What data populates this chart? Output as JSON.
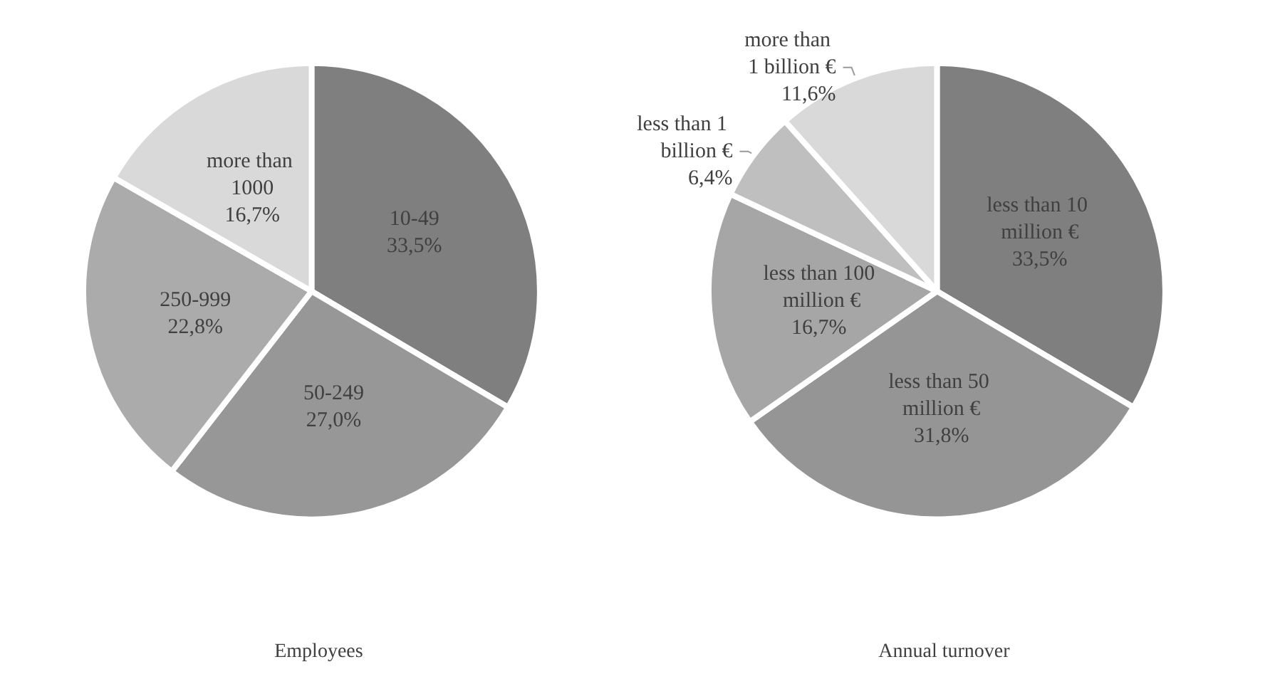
{
  "chart_data": [
    {
      "type": "pie",
      "title": "Employees",
      "categories": [
        "10-49",
        "50-249",
        "250-999",
        "more than 1000"
      ],
      "values": [
        33.5,
        27.0,
        22.8,
        16.7
      ],
      "value_labels": [
        "33,5%",
        "27,0%",
        "22,8%",
        "16,7%"
      ],
      "colors": [
        "#7f7f7f",
        "#979797",
        "#ababab",
        "#d9d9d9"
      ],
      "legend": false
    },
    {
      "type": "pie",
      "title": "Annual turnover",
      "categories": [
        "less than 10 million €",
        "less than 50 million €",
        "less than 100 million €",
        "less than 1 billion €",
        "more than 1 billion €"
      ],
      "values": [
        33.5,
        31.8,
        16.7,
        6.4,
        11.6
      ],
      "value_labels": [
        "33,5%",
        "31,8%",
        "16,7%",
        "6,4%",
        "11,6%"
      ],
      "colors": [
        "#7f7f7f",
        "#959595",
        "#a6a6a6",
        "#bfbfbf",
        "#d9d9d9"
      ],
      "legend": false
    }
  ]
}
